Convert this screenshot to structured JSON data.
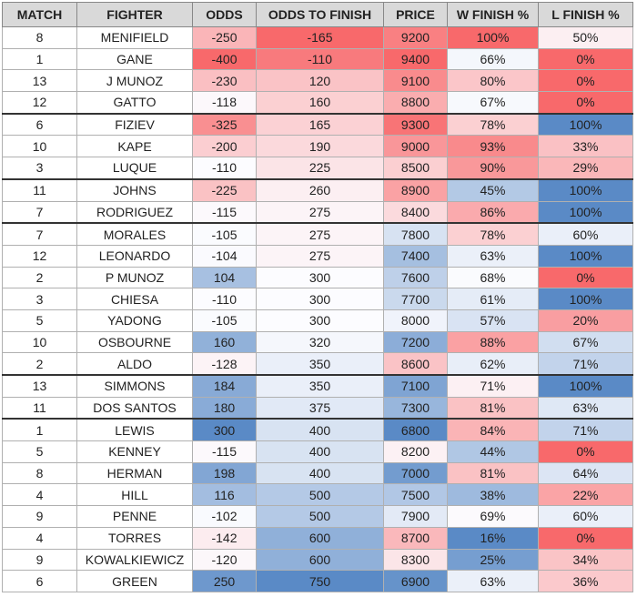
{
  "table": {
    "header": [
      "MATCH",
      "FIGHTER",
      "ODDS",
      "ODDS TO FINISH",
      "PRICE",
      "W FINISH %",
      "L FINISH %"
    ],
    "rows": [
      [
        8,
        "MENIFIELD",
        -250,
        -165,
        9200,
        "100%",
        "50%"
      ],
      [
        1,
        "GANE",
        -400,
        -110,
        9400,
        "66%",
        "0%"
      ],
      [
        13,
        "J MUNOZ",
        -230,
        120,
        9100,
        "80%",
        "0%"
      ],
      [
        12,
        "GATTO",
        -118,
        160,
        8800,
        "67%",
        "0%"
      ],
      [
        6,
        "FIZIEV",
        -325,
        165,
        9300,
        "78%",
        "100%"
      ],
      [
        10,
        "KAPE",
        -200,
        190,
        9000,
        "93%",
        "33%"
      ],
      [
        3,
        "LUQUE",
        -110,
        225,
        8500,
        "90%",
        "29%"
      ],
      [
        11,
        "JOHNS",
        -225,
        260,
        8900,
        "45%",
        "100%"
      ],
      [
        7,
        "RODRIGUEZ",
        -115,
        275,
        8400,
        "86%",
        "100%"
      ],
      [
        7,
        "MORALES",
        -105,
        275,
        7800,
        "78%",
        "60%"
      ],
      [
        12,
        "LEONARDO",
        -104,
        275,
        7400,
        "63%",
        "100%"
      ],
      [
        2,
        "P MUNOZ",
        104,
        300,
        7600,
        "68%",
        "0%"
      ],
      [
        3,
        "CHIESA",
        -110,
        300,
        7700,
        "61%",
        "100%"
      ],
      [
        5,
        "YADONG",
        -105,
        300,
        8000,
        "57%",
        "20%"
      ],
      [
        10,
        "OSBOURNE",
        160,
        320,
        7200,
        "88%",
        "67%"
      ],
      [
        2,
        "ALDO",
        -128,
        350,
        8600,
        "62%",
        "71%"
      ],
      [
        13,
        "SIMMONS",
        184,
        350,
        7100,
        "71%",
        "100%"
      ],
      [
        11,
        "DOS SANTOS",
        180,
        375,
        7300,
        "81%",
        "63%"
      ],
      [
        1,
        "LEWIS",
        300,
        400,
        6800,
        "84%",
        "71%"
      ],
      [
        5,
        "KENNEY",
        -115,
        400,
        8200,
        "44%",
        "0%"
      ],
      [
        8,
        "HERMAN",
        198,
        400,
        7000,
        "81%",
        "64%"
      ],
      [
        4,
        "HILL",
        116,
        500,
        7500,
        "38%",
        "22%"
      ],
      [
        9,
        "PENNE",
        -102,
        500,
        7900,
        "69%",
        "60%"
      ],
      [
        4,
        "TORRES",
        -142,
        600,
        8700,
        "16%",
        "0%"
      ],
      [
        9,
        "KOWALKIEWICZ",
        -120,
        600,
        8300,
        "25%",
        "34%"
      ],
      [
        6,
        "GREEN",
        250,
        750,
        6900,
        "63%",
        "36%"
      ]
    ]
  }
}
